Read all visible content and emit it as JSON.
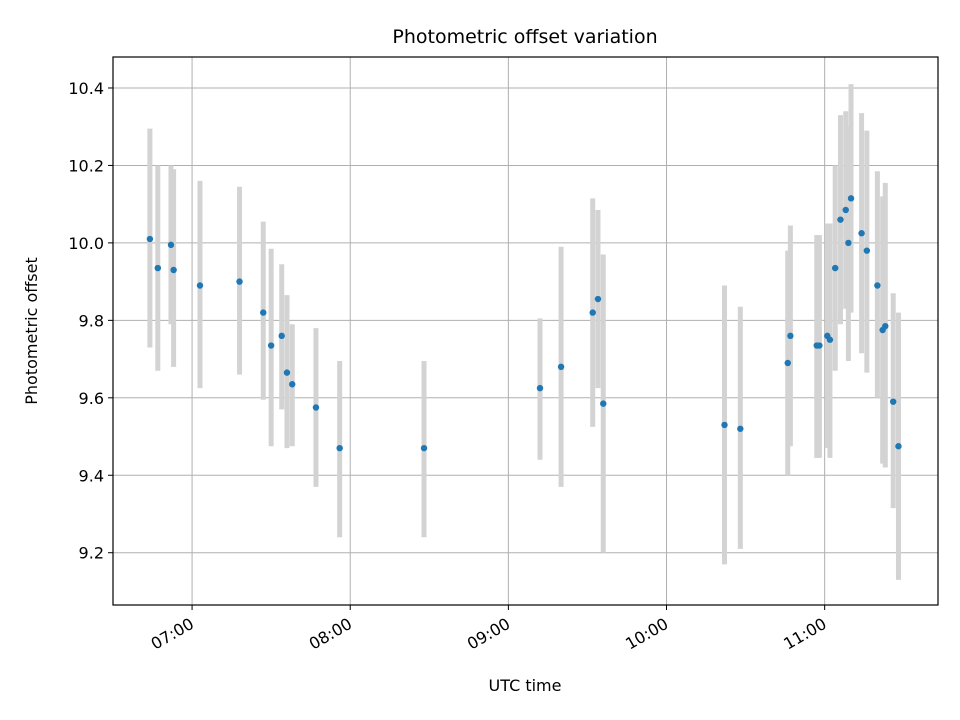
{
  "chart_data": {
    "type": "scatter",
    "title": "Photometric offset variation",
    "xlabel": "UTC time",
    "ylabel": "Photometric offset",
    "grid": true,
    "xlim": [
      "06:30",
      "11:43"
    ],
    "ylim": [
      9.065,
      10.48
    ],
    "x_ticks": [
      "07:00",
      "08:00",
      "09:00",
      "10:00",
      "11:00"
    ],
    "y_ticks": [
      9.2,
      9.4,
      9.6,
      9.8,
      10.0,
      10.2,
      10.4
    ],
    "y_tick_labels": [
      "9.2",
      "9.4",
      "9.6",
      "9.8",
      "10.0",
      "10.2",
      "10.4"
    ],
    "colors": {
      "point": "#1f77b4",
      "errorbar": "#d3d3d3",
      "grid": "#b0b0b0"
    },
    "points": [
      {
        "x": "06:44",
        "y": 10.01,
        "lo": 9.73,
        "hi": 10.295
      },
      {
        "x": "06:47",
        "y": 9.935,
        "lo": 9.67,
        "hi": 10.2
      },
      {
        "x": "06:52",
        "y": 9.995,
        "lo": 9.79,
        "hi": 10.2
      },
      {
        "x": "06:53",
        "y": 9.93,
        "lo": 9.68,
        "hi": 10.19
      },
      {
        "x": "07:03",
        "y": 9.89,
        "lo": 9.625,
        "hi": 10.16
      },
      {
        "x": "07:18",
        "y": 9.9,
        "lo": 9.66,
        "hi": 10.145
      },
      {
        "x": "07:27",
        "y": 9.82,
        "lo": 9.595,
        "hi": 10.055
      },
      {
        "x": "07:30",
        "y": 9.735,
        "lo": 9.475,
        "hi": 9.985
      },
      {
        "x": "07:34",
        "y": 9.76,
        "lo": 9.57,
        "hi": 9.945
      },
      {
        "x": "07:36",
        "y": 9.665,
        "lo": 9.47,
        "hi": 9.865
      },
      {
        "x": "07:38",
        "y": 9.635,
        "lo": 9.475,
        "hi": 9.79
      },
      {
        "x": "07:47",
        "y": 9.575,
        "lo": 9.37,
        "hi": 9.78
      },
      {
        "x": "07:56",
        "y": 9.47,
        "lo": 9.24,
        "hi": 9.695
      },
      {
        "x": "08:28",
        "y": 9.47,
        "lo": 9.24,
        "hi": 9.695
      },
      {
        "x": "09:12",
        "y": 9.625,
        "lo": 9.44,
        "hi": 9.805
      },
      {
        "x": "09:20",
        "y": 9.68,
        "lo": 9.37,
        "hi": 9.99
      },
      {
        "x": "09:32",
        "y": 9.82,
        "lo": 9.525,
        "hi": 10.115
      },
      {
        "x": "09:34",
        "y": 9.855,
        "lo": 9.625,
        "hi": 10.085
      },
      {
        "x": "09:36",
        "y": 9.585,
        "lo": 9.2,
        "hi": 9.97
      },
      {
        "x": "10:22",
        "y": 9.53,
        "lo": 9.17,
        "hi": 9.89
      },
      {
        "x": "10:28",
        "y": 9.52,
        "lo": 9.21,
        "hi": 9.835
      },
      {
        "x": "10:46",
        "y": 9.69,
        "lo": 9.4,
        "hi": 9.98
      },
      {
        "x": "10:47",
        "y": 9.76,
        "lo": 9.475,
        "hi": 10.045
      },
      {
        "x": "10:57",
        "y": 9.735,
        "lo": 9.445,
        "hi": 10.02
      },
      {
        "x": "10:58",
        "y": 9.735,
        "lo": 9.445,
        "hi": 10.02
      },
      {
        "x": "11:01",
        "y": 9.76,
        "lo": 9.47,
        "hi": 10.05
      },
      {
        "x": "11:02",
        "y": 9.75,
        "lo": 9.445,
        "hi": 10.05
      },
      {
        "x": "11:04",
        "y": 9.935,
        "lo": 9.67,
        "hi": 10.2
      },
      {
        "x": "11:06",
        "y": 10.06,
        "lo": 9.79,
        "hi": 10.33
      },
      {
        "x": "11:08",
        "y": 10.085,
        "lo": 9.83,
        "hi": 10.34
      },
      {
        "x": "11:09",
        "y": 10.0,
        "lo": 9.695,
        "hi": 10.3
      },
      {
        "x": "11:10",
        "y": 10.115,
        "lo": 9.82,
        "hi": 10.41
      },
      {
        "x": "11:14",
        "y": 10.025,
        "lo": 9.715,
        "hi": 10.335
      },
      {
        "x": "11:16",
        "y": 9.98,
        "lo": 9.665,
        "hi": 10.29
      },
      {
        "x": "11:20",
        "y": 9.89,
        "lo": 9.6,
        "hi": 10.185
      },
      {
        "x": "11:22",
        "y": 9.775,
        "lo": 9.43,
        "hi": 10.12
      },
      {
        "x": "11:23",
        "y": 9.785,
        "lo": 9.42,
        "hi": 10.155
      },
      {
        "x": "11:26",
        "y": 9.59,
        "lo": 9.315,
        "hi": 9.87
      },
      {
        "x": "11:28",
        "y": 9.475,
        "lo": 9.13,
        "hi": 9.82
      }
    ]
  }
}
